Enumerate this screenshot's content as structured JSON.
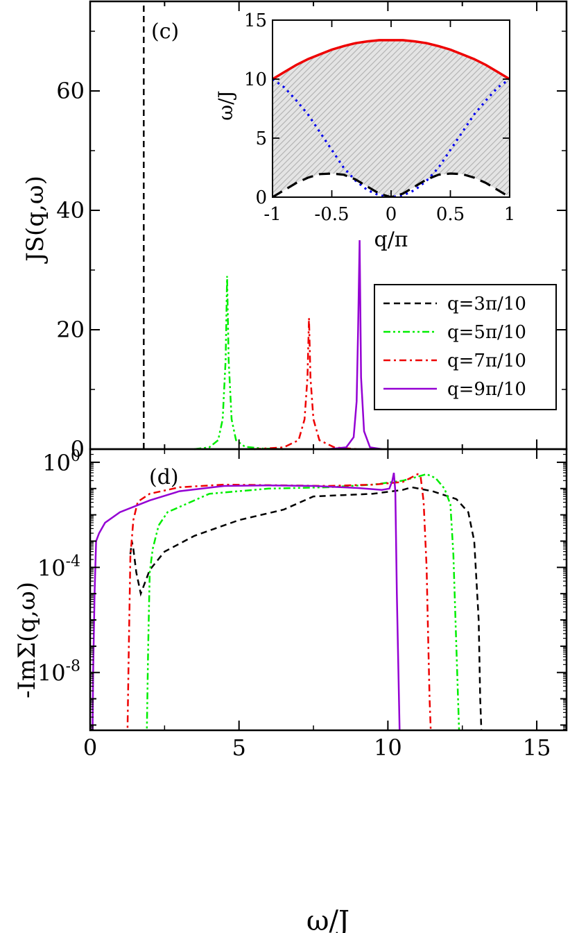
{
  "chart_data": [
    {
      "id": "c",
      "panel_label": "(c)",
      "type": "line",
      "xlabel": "ω/J",
      "ylabel": "JS(q,ω)",
      "xlim": [
        0,
        16
      ],
      "ylim": [
        0,
        75
      ],
      "y_ticks": [
        "0",
        "20",
        "40",
        "60"
      ],
      "series": [
        {
          "name": "q=3π/10",
          "legend_label": "q=3π/10",
          "color": "#000000",
          "dash": "dashed",
          "x": [
            1.8,
            1.8
          ],
          "y": [
            0,
            75
          ]
        },
        {
          "name": "q=5π/10",
          "legend_label": "q=5π/10",
          "color": "#00ee00",
          "dash": "dashdotdot",
          "x": [
            3.5,
            4.0,
            4.3,
            4.45,
            4.55,
            4.6,
            4.65,
            4.75,
            4.9,
            5.2,
            5.8,
            6.5
          ],
          "y": [
            0,
            0.3,
            1.5,
            5,
            15,
            29,
            15,
            5,
            1.5,
            0.4,
            0.1,
            0
          ]
        },
        {
          "name": "q=7π/10",
          "legend_label": "q=7π/10",
          "color": "#ee0000",
          "dash": "dashdot",
          "x": [
            5.5,
            6.5,
            7.0,
            7.2,
            7.3,
            7.35,
            7.4,
            7.5,
            7.7,
            8.2,
            9.0
          ],
          "y": [
            0,
            0.3,
            1.5,
            5,
            12,
            22,
            12,
            5,
            1.5,
            0.3,
            0
          ]
        },
        {
          "name": "q=9π/10",
          "legend_label": "q=9π/10",
          "color": "#9400d3",
          "dash": "solid",
          "x": [
            8.0,
            8.6,
            8.85,
            8.95,
            9.0,
            9.05,
            9.1,
            9.2,
            9.4,
            9.8
          ],
          "y": [
            0,
            0.3,
            2,
            8,
            20,
            35,
            12,
            3,
            0.3,
            0
          ]
        }
      ],
      "legend_position": "right, mid-height"
    },
    {
      "id": "c-inset",
      "type": "line",
      "xlabel": "q/π",
      "ylabel": "ω/J",
      "xlim": [
        -1,
        1
      ],
      "ylim": [
        0,
        15
      ],
      "x_ticks": [
        "-1",
        "-0.5",
        "0",
        "0.5",
        "1"
      ],
      "y_ticks": [
        "0",
        "5",
        "10",
        "15"
      ],
      "shaded_region": "hatched grey region between lower and upper continuum boundaries",
      "series": [
        {
          "name": "upper boundary",
          "color": "#ee0000",
          "dash": "solid",
          "x": [
            -1,
            -0.9,
            -0.8,
            -0.7,
            -0.6,
            -0.5,
            -0.4,
            -0.3,
            -0.2,
            -0.1,
            0,
            0.1,
            0.2,
            0.3,
            0.4,
            0.5,
            0.6,
            0.7,
            0.8,
            0.9,
            1
          ],
          "y": [
            10.0,
            10.6,
            11.2,
            11.7,
            12.1,
            12.5,
            12.8,
            13.05,
            13.2,
            13.3,
            13.3,
            13.3,
            13.2,
            13.05,
            12.8,
            12.5,
            12.1,
            11.7,
            11.2,
            10.6,
            10.0
          ]
        },
        {
          "name": "single-particle dispersion",
          "color": "#0000ee",
          "dash": "dotted",
          "x": [
            -1,
            -0.9,
            -0.8,
            -0.7,
            -0.6,
            -0.5,
            -0.4,
            -0.3,
            -0.2,
            -0.1,
            0,
            0.1,
            0.2,
            0.3,
            0.4,
            0.5,
            0.6,
            0.7,
            0.8,
            0.9,
            1
          ],
          "y": [
            10.0,
            9.3,
            8.2,
            7.0,
            5.5,
            4.0,
            2.5,
            1.4,
            0.6,
            0.15,
            0,
            0.15,
            0.6,
            1.4,
            2.5,
            4.0,
            5.5,
            7.0,
            8.2,
            9.3,
            10.0
          ]
        },
        {
          "name": "lower boundary",
          "color": "#000000",
          "dash": "longdash",
          "x": [
            -1,
            -0.9,
            -0.8,
            -0.7,
            -0.6,
            -0.5,
            -0.4,
            -0.3,
            -0.2,
            -0.1,
            0,
            0.1,
            0.2,
            0.3,
            0.4,
            0.5,
            0.6,
            0.7,
            0.8,
            0.9,
            1
          ],
          "y": [
            0,
            0.6,
            1.2,
            1.65,
            1.95,
            2.0,
            1.9,
            1.5,
            0.9,
            0.3,
            0,
            0.3,
            0.9,
            1.5,
            1.9,
            2.0,
            1.95,
            1.65,
            1.2,
            0.6,
            0
          ]
        }
      ]
    },
    {
      "id": "d",
      "panel_label": "(d)",
      "type": "line",
      "xlabel": "ω/J",
      "ylabel": "-ImΣ(q,ω)",
      "xlim": [
        0,
        16
      ],
      "ylim_log10": [
        -10.2,
        0.5
      ],
      "x_ticks": [
        "0",
        "5",
        "10",
        "15"
      ],
      "y_ticks_log10": [
        0,
        -4,
        -8
      ],
      "y_tick_bases": [
        "10",
        "10",
        "10"
      ],
      "y_tick_exponents": [
        "0",
        "-4",
        "-8"
      ],
      "series": [
        {
          "name": "q=3π/10",
          "color": "#000000",
          "dash": "dashed",
          "x": [
            1.35,
            1.4,
            1.45,
            1.55,
            1.7,
            2.0,
            2.5,
            3.5,
            5.0,
            6.5,
            7.5,
            8.5,
            9.5,
            10.5,
            10.8,
            11.5,
            12.3,
            12.7,
            12.9,
            13.05,
            13.1,
            13.15
          ],
          "y": [
            -3.5,
            -3.0,
            -3.3,
            -4.2,
            -5.0,
            -4.1,
            -3.4,
            -2.8,
            -2.2,
            -1.8,
            -1.3,
            -1.25,
            -1.2,
            -1.05,
            -0.95,
            -1.1,
            -1.4,
            -1.9,
            -3.0,
            -6.0,
            -9.0,
            -10.5
          ]
        },
        {
          "name": "q=5π/10",
          "color": "#00ee00",
          "dash": "dashdotdot",
          "x": [
            1.9,
            1.95,
            2.0,
            2.1,
            2.3,
            2.6,
            3.0,
            4.0,
            6.0,
            8.0,
            9.5,
            10.5,
            11.0,
            11.3,
            11.6,
            11.9,
            12.1,
            12.2,
            12.3,
            12.4
          ],
          "y": [
            -10.5,
            -7.0,
            -4.2,
            -3.3,
            -2.4,
            -1.9,
            -1.7,
            -1.2,
            -1.0,
            -0.95,
            -0.85,
            -0.7,
            -0.55,
            -0.45,
            -0.6,
            -1.0,
            -1.6,
            -3.5,
            -7.0,
            -10.5
          ]
        },
        {
          "name": "q=7π/10",
          "color": "#ee0000",
          "dash": "dashdot",
          "x": [
            1.25,
            1.3,
            1.35,
            1.45,
            1.6,
            2.0,
            3.0,
            4.5,
            6.0,
            8.0,
            9.5,
            10.5,
            11.0,
            11.1,
            11.2,
            11.3,
            11.35,
            11.4,
            11.45
          ],
          "y": [
            -10.5,
            -7.0,
            -3.6,
            -2.2,
            -1.5,
            -1.2,
            -0.95,
            -0.85,
            -0.87,
            -0.9,
            -0.85,
            -0.75,
            -0.45,
            -0.55,
            -1.5,
            -4.0,
            -6.5,
            -9.0,
            -10.5
          ]
        },
        {
          "name": "q=9π/10",
          "color": "#9400d3",
          "dash": "solid",
          "x": [
            0.08,
            0.1,
            0.15,
            0.2,
            0.3,
            0.5,
            1.0,
            2.0,
            3.0,
            4.5,
            6.0,
            7.5,
            9.0,
            9.8,
            10.05,
            10.15,
            10.2,
            10.25,
            10.3,
            10.4
          ],
          "y": [
            -10.5,
            -8.0,
            -5.0,
            -3.0,
            -2.7,
            -2.3,
            -1.9,
            -1.45,
            -1.1,
            -0.9,
            -0.88,
            -0.9,
            -0.98,
            -1.05,
            -1.0,
            -0.7,
            -0.4,
            -1.1,
            -5.0,
            -10.5
          ]
        }
      ]
    }
  ]
}
